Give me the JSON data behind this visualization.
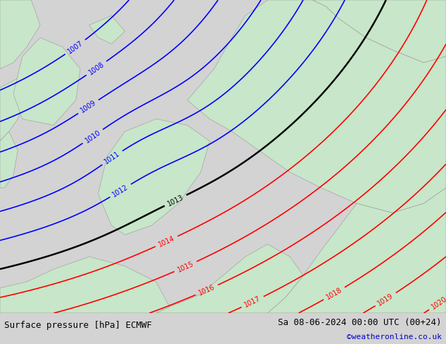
{
  "title_left": "Surface pressure [hPa] ECMWF",
  "title_right": "Sa 08-06-2024 00:00 UTC (00+24)",
  "credit": "©weatheronline.co.uk",
  "bg_color": "#d3d3d3",
  "land_color": "#c8e6c9",
  "sea_color": "#d3d3d3",
  "blue_contour_color": "#0000ff",
  "red_contour_color": "#ff0000",
  "black_contour_color": "#000000",
  "bottom_bar_color": "#e8e8e8",
  "text_color": "#000000",
  "link_color": "#0000cd",
  "font_size_bottom": 9,
  "fig_width": 6.34,
  "fig_height": 4.9,
  "blue_levels": [
    1007,
    1008,
    1009,
    1010,
    1011,
    1012
  ],
  "black_levels": [
    1013
  ],
  "red_levels": [
    1014,
    1015,
    1016,
    1017,
    1018,
    1019,
    1020
  ]
}
